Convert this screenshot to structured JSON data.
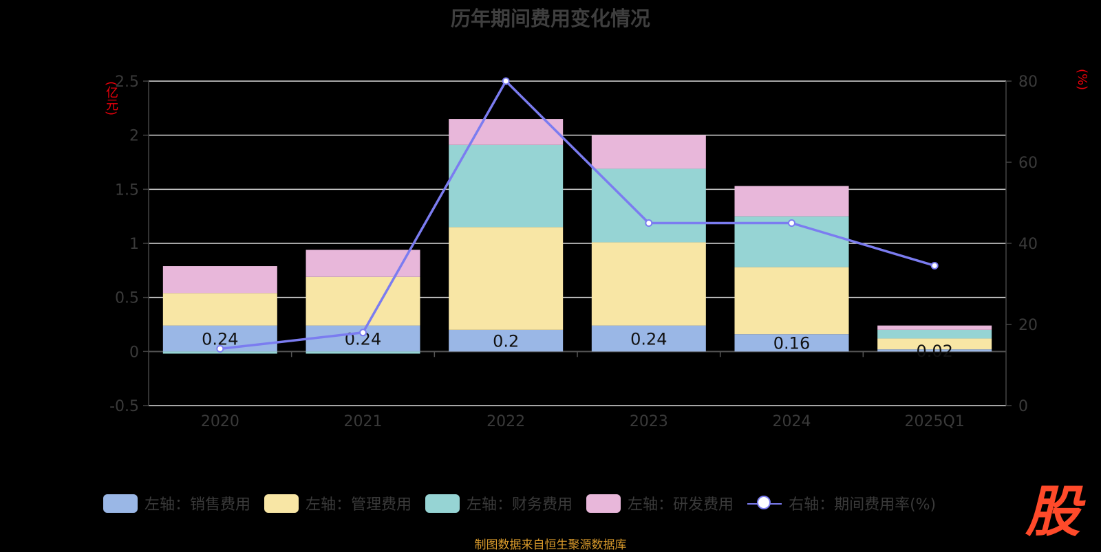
{
  "title": "历年期间费用变化情况",
  "left_unit": "(亿元)",
  "right_unit": "(%)",
  "source": "制图数据来自恒生聚源数据库",
  "logo_text": "股",
  "colors": {
    "sales": "#9ab7e6",
    "admin": "#f8e6a5",
    "finance": "#96d4d4",
    "rnd": "#e8b7da",
    "rate": "#7b7cf0"
  },
  "legend": [
    {
      "label": "左轴：销售费用",
      "color": "#9ab7e6",
      "kind": "bar"
    },
    {
      "label": "左轴：管理费用",
      "color": "#f8e6a5",
      "kind": "bar"
    },
    {
      "label": "左轴：财务费用",
      "color": "#96d4d4",
      "kind": "bar"
    },
    {
      "label": "左轴：研发费用",
      "color": "#e8b7da",
      "kind": "bar"
    },
    {
      "label": "右轴：期间费用率(%)",
      "color": "#7b7cf0",
      "kind": "line"
    }
  ],
  "chart_data": {
    "type": "bar",
    "stacked": true,
    "title": "历年期间费用变化情况",
    "categories": [
      "2020",
      "2021",
      "2022",
      "2023",
      "2024",
      "2025Q1"
    ],
    "series": [
      {
        "name": "左轴：销售费用",
        "axis": "left",
        "values": [
          0.24,
          0.24,
          0.2,
          0.24,
          0.16,
          0.02
        ],
        "labels": [
          "0.24",
          "0.24",
          "0.2",
          "0.24",
          "0.16",
          "0.02"
        ]
      },
      {
        "name": "左轴：管理费用",
        "axis": "left",
        "values": [
          0.3,
          0.45,
          0.95,
          0.77,
          0.62,
          0.1
        ]
      },
      {
        "name": "左轴：财务费用",
        "axis": "left",
        "values": [
          -0.02,
          -0.02,
          0.76,
          0.68,
          0.47,
          0.08
        ]
      },
      {
        "name": "左轴：研发费用",
        "axis": "left",
        "values": [
          0.25,
          0.25,
          0.24,
          0.31,
          0.28,
          0.04
        ]
      },
      {
        "name": "右轴：期间费用率(%)",
        "axis": "right",
        "type": "line",
        "values": [
          14,
          18,
          80,
          45,
          45,
          34.5
        ]
      }
    ],
    "left_axis": {
      "label": "(亿元)",
      "min": -0.5,
      "max": 2.5,
      "ticks": [
        -0.5,
        0,
        0.5,
        1,
        1.5,
        2,
        2.5
      ],
      "tick_labels": [
        "-0.5",
        "0",
        "0.5",
        "1",
        "1.5",
        "2",
        "2.5"
      ]
    },
    "right_axis": {
      "label": "(%)",
      "min": 0,
      "max": 80,
      "ticks": [
        0,
        20,
        40,
        60,
        80
      ],
      "tick_labels": [
        "0",
        "20",
        "40",
        "60",
        "80"
      ]
    },
    "grid": true,
    "legend_position": "bottom"
  }
}
